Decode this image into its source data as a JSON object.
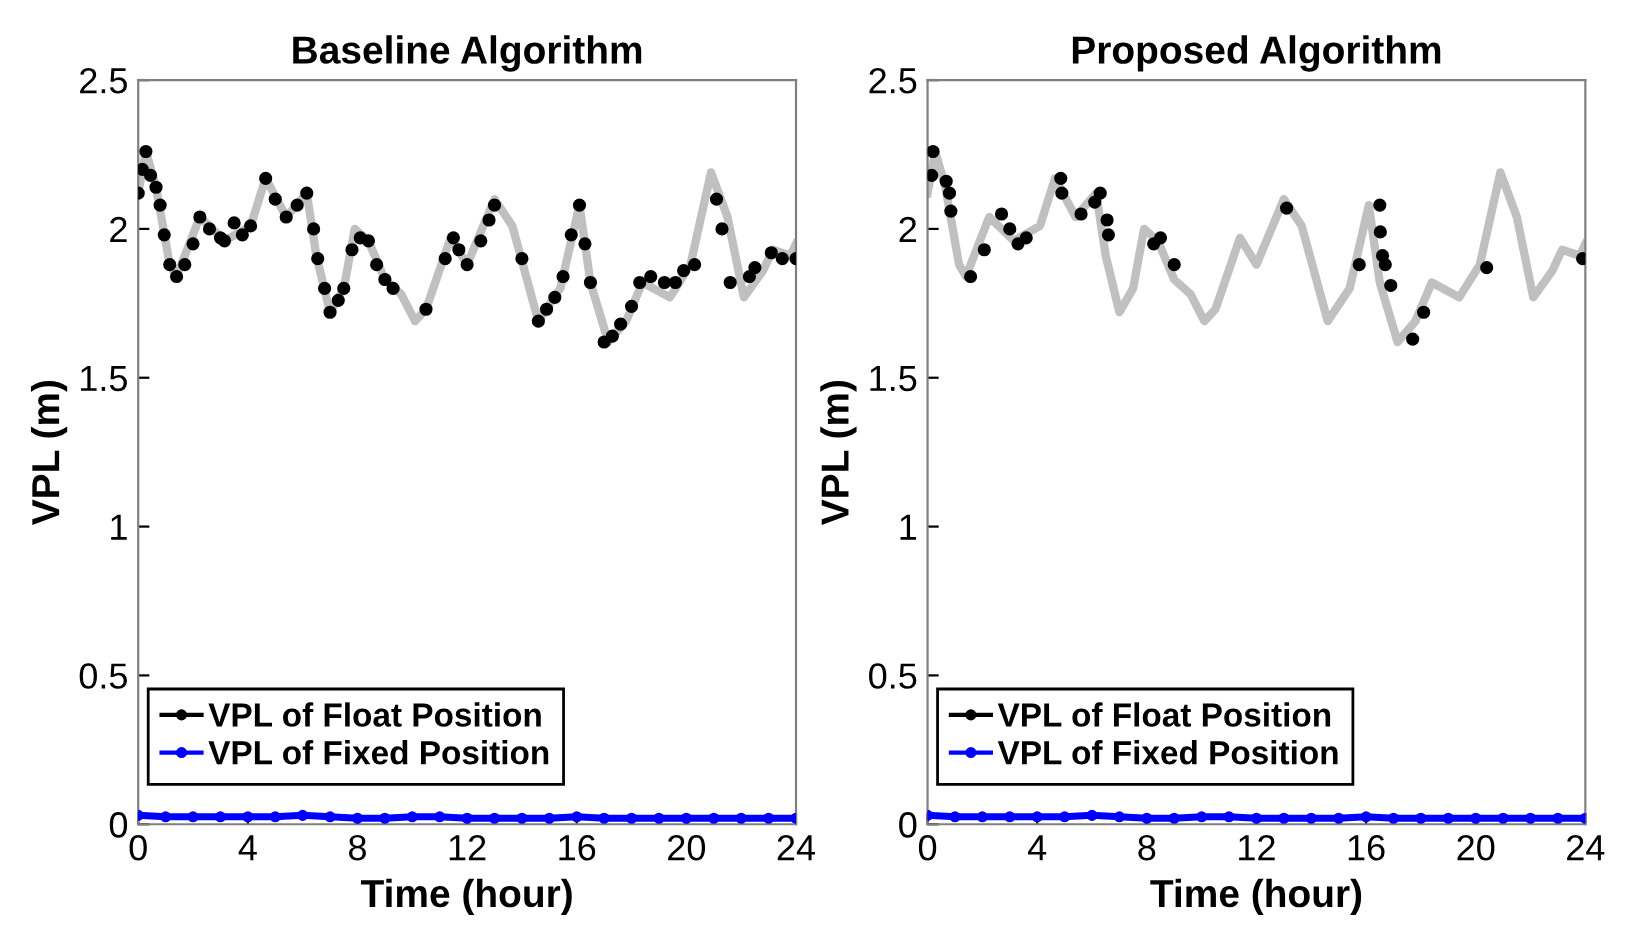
{
  "chart_data": [
    {
      "type": "line",
      "title": "Baseline Algorithm",
      "xlabel": "Time (hour)",
      "ylabel": "VPL (m)",
      "xlim": [
        0,
        24
      ],
      "xticks": [
        0,
        4,
        8,
        12,
        16,
        20,
        24
      ],
      "ylim": [
        0,
        2.5
      ],
      "yticks": [
        0,
        0.5,
        1,
        1.5,
        2,
        2.5
      ],
      "grid": false,
      "legend": "bottom left",
      "series": [
        {
          "color": "#c0c0c0",
          "marker": "none",
          "x": [
            0,
            0.28,
            0.65,
            1.15,
            1.4,
            2.25,
            3.15,
            4.1,
            4.65,
            5.4,
            6.15,
            6.5,
            7.0,
            7.5,
            7.9,
            8.4,
            9.0,
            9.6,
            10.1,
            10.5,
            11.4,
            12.0,
            13.0,
            13.65,
            14.6,
            15.4,
            16.1,
            16.5,
            17.15,
            17.8,
            18.4,
            19.4,
            20.15,
            20.9,
            21.5,
            22.1,
            22.8,
            23.15,
            23.8,
            24
          ],
          "values": [
            2.12,
            2.26,
            2.14,
            1.88,
            1.84,
            2.04,
            1.96,
            2.01,
            2.17,
            2.04,
            2.12,
            1.91,
            1.72,
            1.8,
            2.0,
            1.96,
            1.83,
            1.78,
            1.69,
            1.73,
            1.97,
            1.88,
            2.1,
            2.01,
            1.69,
            1.8,
            2.08,
            1.82,
            1.62,
            1.69,
            1.82,
            1.77,
            1.88,
            2.19,
            2.04,
            1.77,
            1.86,
            1.93,
            1.91,
            1.95
          ]
        },
        {
          "type": "scatter",
          "name": "VPL of Float Position",
          "color": "#000000",
          "marker": "circle",
          "x": [
            0,
            0.15,
            0.28,
            0.45,
            0.65,
            0.8,
            0.95,
            1.15,
            1.4,
            1.7,
            2.0,
            2.25,
            2.6,
            3.0,
            3.15,
            3.5,
            3.8,
            4.1,
            4.65,
            5.0,
            5.4,
            5.8,
            6.15,
            6.4,
            6.55,
            6.8,
            7.0,
            7.3,
            7.5,
            7.8,
            8.1,
            8.4,
            8.7,
            9.0,
            9.3,
            10.5,
            11.2,
            11.5,
            11.7,
            12.0,
            12.5,
            12.8,
            13.0,
            14.0,
            14.6,
            14.9,
            15.2,
            15.5,
            15.8,
            16.1,
            16.3,
            16.5,
            17.0,
            17.3,
            17.6,
            18.0,
            18.3,
            18.7,
            19.2,
            19.6,
            19.9,
            20.3,
            21.1,
            21.3,
            21.6,
            22.3,
            22.5,
            23.1,
            23.5,
            24.0
          ],
          "values": [
            2.12,
            2.2,
            2.26,
            2.18,
            2.14,
            2.08,
            1.98,
            1.88,
            1.84,
            1.88,
            1.95,
            2.04,
            2.0,
            1.97,
            1.96,
            2.02,
            1.98,
            2.01,
            2.17,
            2.1,
            2.04,
            2.08,
            2.12,
            2.0,
            1.9,
            1.8,
            1.72,
            1.76,
            1.8,
            1.93,
            1.97,
            1.96,
            1.88,
            1.83,
            1.8,
            1.73,
            1.9,
            1.97,
            1.93,
            1.88,
            1.96,
            2.03,
            2.08,
            1.9,
            1.69,
            1.73,
            1.77,
            1.84,
            1.98,
            2.08,
            1.95,
            1.82,
            1.62,
            1.64,
            1.68,
            1.74,
            1.82,
            1.84,
            1.82,
            1.82,
            1.86,
            1.88,
            2.1,
            2.0,
            1.82,
            1.84,
            1.87,
            1.92,
            1.9,
            1.9
          ]
        },
        {
          "type": "line",
          "name": "VPL of Fixed Position",
          "color": "#0000ff",
          "marker": "circle",
          "x": [
            0,
            1,
            2,
            3,
            4,
            5,
            6,
            7,
            8,
            9,
            10,
            11,
            12,
            13,
            14,
            15,
            16,
            17,
            18,
            19,
            20,
            21,
            22,
            23,
            24
          ],
          "values": [
            0.03,
            0.025,
            0.025,
            0.025,
            0.025,
            0.025,
            0.03,
            0.025,
            0.02,
            0.02,
            0.025,
            0.025,
            0.02,
            0.02,
            0.02,
            0.02,
            0.025,
            0.02,
            0.02,
            0.02,
            0.02,
            0.02,
            0.02,
            0.02,
            0.02
          ]
        }
      ]
    },
    {
      "type": "line",
      "title": "Proposed Algorithm",
      "xlabel": "Time (hour)",
      "ylabel": "VPL (m)",
      "xlim": [
        0,
        24
      ],
      "xticks": [
        0,
        4,
        8,
        12,
        16,
        20,
        24
      ],
      "ylim": [
        0,
        2.5
      ],
      "yticks": [
        0,
        0.5,
        1,
        1.5,
        2,
        2.5
      ],
      "grid": false,
      "legend": "bottom left",
      "series": [
        {
          "color": "#c0c0c0",
          "marker": "none",
          "x": [
            0,
            0.28,
            0.65,
            1.15,
            1.4,
            2.25,
            3.15,
            4.1,
            4.65,
            5.4,
            6.15,
            6.5,
            7.0,
            7.5,
            7.9,
            8.4,
            9.0,
            9.6,
            10.1,
            10.5,
            11.4,
            12.0,
            13.0,
            13.65,
            14.6,
            15.4,
            16.1,
            16.5,
            17.15,
            17.8,
            18.4,
            19.4,
            20.15,
            20.9,
            21.5,
            22.1,
            22.8,
            23.15,
            23.8,
            24
          ],
          "values": [
            2.12,
            2.26,
            2.14,
            1.88,
            1.84,
            2.04,
            1.96,
            2.01,
            2.17,
            2.04,
            2.12,
            1.91,
            1.72,
            1.8,
            2.0,
            1.96,
            1.83,
            1.78,
            1.69,
            1.73,
            1.97,
            1.88,
            2.1,
            2.01,
            1.69,
            1.8,
            2.08,
            1.82,
            1.62,
            1.69,
            1.82,
            1.77,
            1.88,
            2.19,
            2.04,
            1.77,
            1.86,
            1.93,
            1.91,
            1.95
          ]
        },
        {
          "type": "scatter",
          "name": "VPL of Float Position",
          "color": "#000000",
          "marker": "circle",
          "x": [
            0.15,
            0.2,
            0.68,
            0.8,
            0.85,
            1.57,
            2.07,
            2.7,
            3.0,
            3.3,
            3.6,
            4.86,
            4.9,
            5.6,
            6.1,
            6.3,
            6.55,
            6.6,
            8.25,
            8.5,
            9.0,
            13.1,
            15.75,
            16.5,
            16.52,
            16.6,
            16.7,
            16.9,
            17.7,
            18.1,
            20.4,
            23.9
          ],
          "values": [
            2.18,
            2.26,
            2.16,
            2.12,
            2.06,
            1.84,
            1.93,
            2.05,
            2.0,
            1.95,
            1.97,
            2.17,
            2.12,
            2.05,
            2.09,
            2.12,
            2.03,
            1.98,
            1.95,
            1.97,
            1.88,
            2.07,
            1.88,
            2.08,
            1.99,
            1.91,
            1.88,
            1.81,
            1.63,
            1.72,
            1.87,
            1.9
          ]
        },
        {
          "type": "line",
          "name": "VPL of Fixed Position",
          "color": "#0000ff",
          "marker": "circle",
          "x": [
            0,
            1,
            2,
            3,
            4,
            5,
            6,
            7,
            8,
            9,
            10,
            11,
            12,
            13,
            14,
            15,
            16,
            17,
            18,
            19,
            20,
            21,
            22,
            23,
            24
          ],
          "values": [
            0.03,
            0.025,
            0.025,
            0.025,
            0.025,
            0.025,
            0.03,
            0.025,
            0.02,
            0.02,
            0.025,
            0.025,
            0.02,
            0.02,
            0.02,
            0.02,
            0.025,
            0.02,
            0.02,
            0.02,
            0.02,
            0.02,
            0.02,
            0.02,
            0.02
          ]
        }
      ]
    }
  ]
}
